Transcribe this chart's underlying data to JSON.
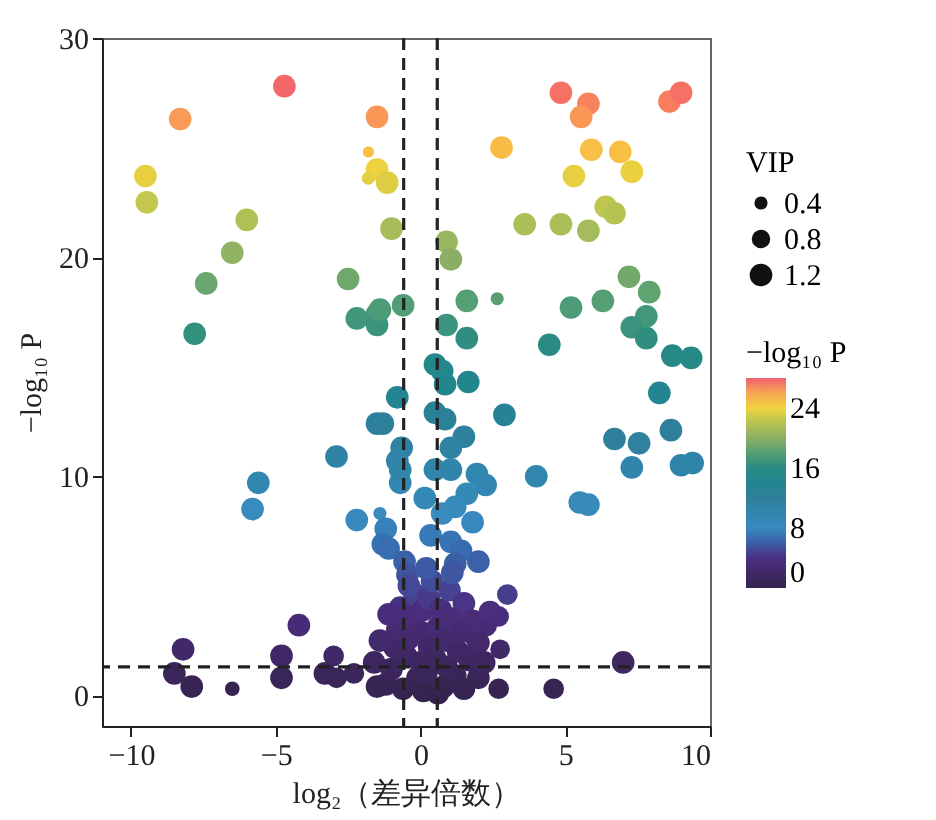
{
  "chart_data": {
    "type": "scatter",
    "xlabel": "log₂（差异倍数）",
    "ylabel": "−log₁₀ P",
    "legend_title": "VIP",
    "clabel": "−log₁₀ P",
    "x": [
      -4.7,
      -8.3,
      -1.5,
      -9.5,
      -9.45,
      -6.0,
      -6.5,
      -7.4,
      -7.8,
      -1.8,
      -1.5,
      -1.8,
      -1.15,
      -1.0,
      -2.5,
      -2.2,
      -1.5,
      -1.5,
      -1.4,
      -0.6,
      -0.8,
      -1.5,
      -1.3,
      -2.9,
      -5.6,
      -5.8,
      -2.2,
      -1.4,
      -1.2,
      -1.3,
      -1.1,
      -0.65,
      -0.8,
      -0.7,
      -0.7,
      -0.55,
      -0.45,
      -4.2,
      -8.2,
      -8.5,
      -7.9,
      -6.5,
      -4.8,
      -4.8,
      -3.0,
      -3.3,
      -2.9,
      -2.3,
      4.85,
      5.8,
      5.55,
      8.6,
      9.0,
      2.8,
      5.9,
      6.9,
      7.3,
      5.3,
      3.6,
      4.85,
      5.8,
      6.4,
      6.7,
      0.9,
      1.05,
      1.6,
      2.65,
      0.9,
      1.6,
      4.45,
      5.2,
      6.3,
      7.2,
      7.9,
      7.8,
      7.3,
      7.8,
      8.7,
      9.35,
      8.25,
      8.65,
      6.7,
      7.55,
      7.3,
      9.0,
      9.4,
      4.0,
      5.5,
      5.8,
      2.9,
      1.65,
      0.5,
      0.75,
      0.85,
      0.5,
      0.85,
      1.5,
      1.05,
      0.5,
      1.05,
      1.95,
      2.25,
      1.6,
      1.2,
      0.15,
      0.75,
      1.8,
      0.35,
      1.05,
      1.4,
      2.0,
      1.2,
      3.0,
      2.75,
      2.7,
      4.6,
      7.0,
      2.7,
      2.25,
      1.9,
      -1.2,
      -1.0,
      -0.9,
      -0.8,
      -0.7,
      -0.6,
      -0.5,
      -0.4,
      -0.3,
      -0.2,
      -0.1,
      0,
      0,
      0.1,
      0.1,
      0.2,
      0.3,
      0.3,
      0.4,
      0.5,
      0.6,
      0.7,
      0.8,
      0.9,
      0.9,
      1.0,
      1.1,
      1.2,
      1.3,
      1.4,
      1.5,
      1.7,
      1.8,
      2.0,
      2.0,
      -1.4,
      -1.5,
      -1.1,
      1.1,
      0.2,
      -0.4,
      2.4,
      2.2,
      1.5,
      -1.6,
      0.6
    ],
    "values": [
      27.8,
      26.3,
      26.4,
      23.7,
      22.5,
      21.7,
      20.2,
      18.8,
      16.5,
      24.8,
      24.0,
      23.6,
      23.4,
      21.3,
      19.0,
      17.2,
      17.4,
      16.9,
      17.6,
      17.8,
      13.6,
      12.4,
      12.4,
      10.9,
      9.7,
      8.5,
      8.0,
      8.3,
      7.6,
      6.9,
      6.7,
      11.3,
      10.7,
      9.7,
      10.3,
      6.1,
      5.5,
      3.2,
      2.1,
      1.0,
      0.4,
      0.3,
      1.8,
      0.8,
      1.8,
      1.0,
      0.8,
      1.0,
      27.5,
      27.0,
      26.4,
      27.1,
      27.5,
      25.0,
      24.9,
      24.8,
      23.9,
      23.7,
      21.5,
      21.5,
      21.2,
      22.3,
      22.0,
      20.7,
      19.9,
      18.0,
      18.1,
      16.9,
      16.3,
      16.0,
      17.7,
      18.0,
      19.1,
      18.4,
      17.3,
      16.8,
      16.3,
      15.5,
      15.4,
      13.8,
      12.1,
      11.7,
      11.5,
      10.4,
      10.5,
      10.6,
      10.0,
      8.8,
      8.7,
      12.8,
      14.3,
      15.1,
      14.8,
      14.2,
      12.9,
      12.6,
      11.8,
      11.3,
      10.3,
      10.3,
      10.1,
      9.6,
      9.2,
      8.6,
      9.0,
      8.3,
      7.9,
      7.3,
      7.0,
      6.6,
      6.1,
      6.0,
      4.6,
      2.1,
      0.3,
      0.3,
      1.5,
      3.6,
      3.2,
      2.7,
      0.5,
      1.2,
      2.2,
      3.0,
      4.0,
      0.3,
      1.8,
      2.6,
      3.6,
      4.6,
      0.8,
      1.5,
      2.9,
      3.9,
      0.2,
      1.0,
      2.2,
      4.4,
      5.2,
      1.7,
      3.1,
      3.9,
      0.4,
      1.3,
      2.5,
      4.8,
      3.5,
      0.9,
      2.0,
      2.9,
      4.2,
      1.6,
      3.4,
      2.4,
      0.8,
      2.5,
      0.4,
      3.7,
      5.6,
      5.8,
      5.0,
      3.8,
      1.5,
      0.3,
      1.5,
      0.1
    ],
    "sizes": [
      1.2,
      1.2,
      1.2,
      1.2,
      1.2,
      1.2,
      1.2,
      1.2,
      1.2,
      0.3,
      1.2,
      0.4,
      1.2,
      1.2,
      1.2,
      1.2,
      1.2,
      1.2,
      1.2,
      1.2,
      1.2,
      1.2,
      1.2,
      1.2,
      1.2,
      1.2,
      1.2,
      0.4,
      1.2,
      1.2,
      1.2,
      1.2,
      1.2,
      1.2,
      1.2,
      1.2,
      1.2,
      1.2,
      1.2,
      1.2,
      1.2,
      0.5,
      1.2,
      1.2,
      1.0,
      1.2,
      1.0,
      1.0,
      1.2,
      1.2,
      1.2,
      1.2,
      1.2,
      1.2,
      1.2,
      1.2,
      1.2,
      1.2,
      1.2,
      1.2,
      1.2,
      1.2,
      1.2,
      1.2,
      1.2,
      1.2,
      0.4,
      1.2,
      1.2,
      1.2,
      1.2,
      1.2,
      1.2,
      1.2,
      1.2,
      1.2,
      1.2,
      1.2,
      1.2,
      1.2,
      1.2,
      1.2,
      1.2,
      1.2,
      1.2,
      1.2,
      1.2,
      1.2,
      1.2,
      1.2,
      1.2,
      1.2,
      1.2,
      1.2,
      1.2,
      1.2,
      1.2,
      1.2,
      1.2,
      1.2,
      1.2,
      1.2,
      1.2,
      1.2,
      1.2,
      1.2,
      1.2,
      1.2,
      1.2,
      1.2,
      1.2,
      1.2,
      1.0,
      0.9,
      1.0,
      1.0,
      1.2,
      1.0,
      1.2,
      1.2,
      1.2,
      1.2,
      1.2,
      1.2,
      1.2,
      1.2,
      1.2,
      1.2,
      1.2,
      1.2,
      1.2,
      1.2,
      1.2,
      1.2,
      1.2,
      1.2,
      1.2,
      1.2,
      1.2,
      1.2,
      1.2,
      1.2,
      1.2,
      1.2,
      1.2,
      1.2,
      1.2,
      1.2,
      1.2,
      1.2,
      1.2,
      1.2,
      1.2,
      1.2,
      1.2,
      1.2,
      1.2,
      1.2,
      1.2,
      1.2,
      1.2,
      1.2,
      1.2,
      1.2,
      1.2,
      1.2
    ],
    "size_legend": [
      0.4,
      0.8,
      1.2
    ],
    "clim": [
      0,
      28
    ],
    "cticks": [
      0,
      8,
      16,
      24
    ],
    "xlim": [
      -11,
      10
    ],
    "xticks": [
      -10,
      -5,
      0,
      5,
      10
    ],
    "ylim": [
      -1.4,
      30
    ],
    "yticks": [
      0,
      10,
      20,
      30
    ],
    "ref_lines": [
      {
        "axis": "x",
        "value": -0.58,
        "line_style": "dashed"
      },
      {
        "axis": "x",
        "value": 0.58,
        "line_style": "dashed"
      },
      {
        "axis": "y",
        "value": 1.3,
        "line_style": "dashed"
      }
    ],
    "grid": false,
    "marker": "circle"
  }
}
